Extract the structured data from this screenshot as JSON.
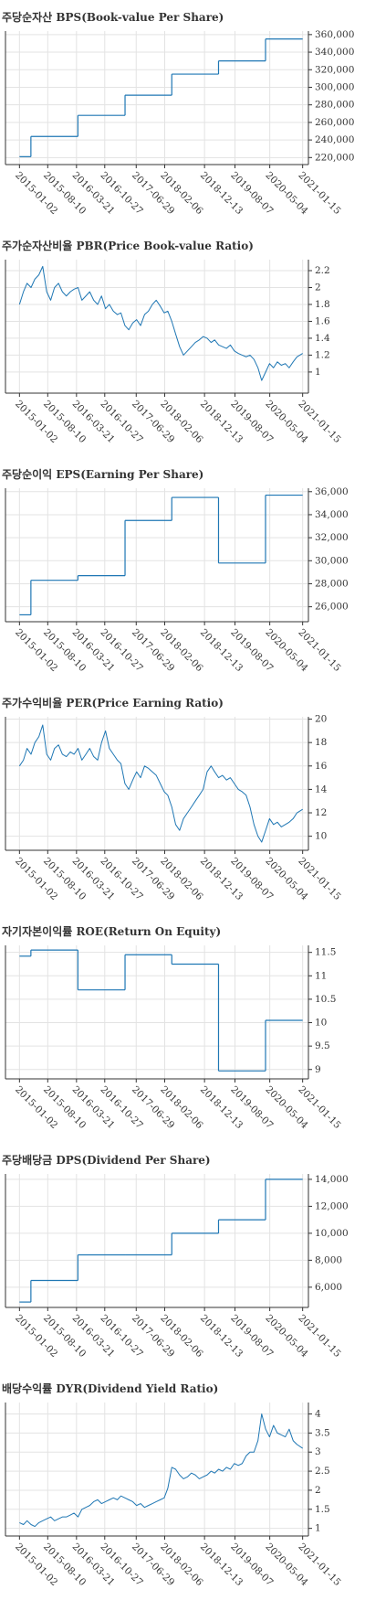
{
  "chart_data": [
    {
      "type": "line",
      "step": "post",
      "title": "주당순자산 BPS(Book-value Per Share)",
      "color": "#1f77b4",
      "grid": true,
      "x": [
        "2015-01-02",
        "2015-04-01",
        "2016-04-01",
        "2017-04-03",
        "2018-04-02",
        "2019-04-01",
        "2020-04-01",
        "2021-01-15"
      ],
      "values": [
        221000,
        244000,
        268000,
        291000,
        315000,
        330000,
        355000,
        355000
      ],
      "xlim": [
        "2014-09-15",
        "2021-03-01"
      ],
      "xticks": [
        "2015-01-02",
        "2015-08-10",
        "2016-03-21",
        "2016-10-27",
        "2017-06-29",
        "2018-02-06",
        "2018-12-13",
        "2019-08-07",
        "2020-05-04",
        "2021-01-15"
      ],
      "ylim": [
        212000,
        364000
      ],
      "yticks": [
        {
          "value": 220000,
          "label": "220,000"
        },
        {
          "value": 240000,
          "label": "240,000"
        },
        {
          "value": 260000,
          "label": "260,000"
        },
        {
          "value": 280000,
          "label": "280,000"
        },
        {
          "value": 300000,
          "label": "300,000"
        },
        {
          "value": 320000,
          "label": "320,000"
        },
        {
          "value": 340000,
          "label": "340,000"
        },
        {
          "value": 360000,
          "label": "360,000"
        }
      ]
    },
    {
      "type": "line",
      "title": "주가순자산비율 PBR(Price Book-value Ratio)",
      "color": "#1f77b4",
      "grid": true,
      "x": [
        "2015-01-02",
        "2015-02-02",
        "2015-03-02",
        "2015-04-02",
        "2015-05-02",
        "2015-06-02",
        "2015-07-02",
        "2015-08-02",
        "2015-09-02",
        "2015-10-02",
        "2015-11-02",
        "2015-12-02",
        "2016-01-02",
        "2016-02-02",
        "2016-03-02",
        "2016-04-02",
        "2016-05-02",
        "2016-06-02",
        "2016-07-02",
        "2016-08-02",
        "2016-09-02",
        "2016-10-02",
        "2016-11-02",
        "2016-12-02",
        "2017-01-02",
        "2017-02-02",
        "2017-03-02",
        "2017-04-02",
        "2017-05-02",
        "2017-06-02",
        "2017-07-02",
        "2017-08-02",
        "2017-09-02",
        "2017-10-02",
        "2017-11-02",
        "2017-12-02",
        "2018-01-02",
        "2018-02-02",
        "2018-03-02",
        "2018-04-02",
        "2018-05-02",
        "2018-06-02",
        "2018-07-02",
        "2018-08-02",
        "2018-09-02",
        "2018-10-02",
        "2018-11-02",
        "2018-12-02",
        "2019-01-02",
        "2019-02-02",
        "2019-03-02",
        "2019-04-02",
        "2019-05-02",
        "2019-06-02",
        "2019-07-02",
        "2019-08-02",
        "2019-09-02",
        "2019-10-02",
        "2019-11-02",
        "2019-12-02",
        "2020-01-02",
        "2020-02-02",
        "2020-03-02",
        "2020-04-02",
        "2020-05-02",
        "2020-06-02",
        "2020-07-02",
        "2020-08-02",
        "2020-09-02",
        "2020-10-02",
        "2020-11-02",
        "2020-12-02",
        "2021-01-15"
      ],
      "values": [
        1.8,
        1.95,
        2.05,
        2.0,
        2.1,
        2.15,
        2.25,
        1.95,
        1.85,
        2.0,
        2.05,
        1.95,
        1.9,
        1.95,
        1.98,
        2.0,
        1.85,
        1.9,
        1.95,
        1.85,
        1.8,
        1.9,
        1.75,
        1.8,
        1.72,
        1.68,
        1.7,
        1.55,
        1.5,
        1.58,
        1.62,
        1.55,
        1.68,
        1.72,
        1.8,
        1.85,
        1.78,
        1.7,
        1.72,
        1.6,
        1.45,
        1.3,
        1.2,
        1.25,
        1.3,
        1.35,
        1.38,
        1.42,
        1.4,
        1.35,
        1.38,
        1.32,
        1.3,
        1.28,
        1.32,
        1.25,
        1.22,
        1.2,
        1.18,
        1.2,
        1.15,
        1.05,
        0.9,
        1.0,
        1.1,
        1.05,
        1.12,
        1.08,
        1.1,
        1.05,
        1.12,
        1.18,
        1.22
      ],
      "xlim": [
        "2014-09-15",
        "2021-03-01"
      ],
      "xticks": [
        "2015-01-02",
        "2015-08-10",
        "2016-03-21",
        "2016-10-27",
        "2017-06-29",
        "2018-02-06",
        "2018-12-13",
        "2019-08-07",
        "2020-05-04",
        "2021-01-15"
      ],
      "ylim": [
        0.75,
        2.33
      ],
      "yticks": [
        1,
        1.2,
        1.4,
        1.6,
        1.8,
        2,
        2.2
      ]
    },
    {
      "type": "line",
      "step": "post",
      "title": "주당순이익 EPS(Earning Per Share)",
      "color": "#1f77b4",
      "grid": true,
      "x": [
        "2015-01-02",
        "2015-04-01",
        "2016-04-01",
        "2017-04-03",
        "2018-04-02",
        "2019-04-01",
        "2020-04-01",
        "2021-01-15"
      ],
      "values": [
        25300,
        28300,
        28700,
        33500,
        35500,
        29800,
        35700,
        35700
      ],
      "xlim": [
        "2014-09-15",
        "2021-03-01"
      ],
      "xticks": [
        "2015-01-02",
        "2015-08-10",
        "2016-03-21",
        "2016-10-27",
        "2017-06-29",
        "2018-02-06",
        "2018-12-13",
        "2019-08-07",
        "2020-05-04",
        "2021-01-15"
      ],
      "ylim": [
        24700,
        36300
      ],
      "yticks": [
        {
          "value": 26000,
          "label": "26,000"
        },
        {
          "value": 28000,
          "label": "28,000"
        },
        {
          "value": 30000,
          "label": "30,000"
        },
        {
          "value": 32000,
          "label": "32,000"
        },
        {
          "value": 34000,
          "label": "34,000"
        },
        {
          "value": 36000,
          "label": "36,000"
        }
      ]
    },
    {
      "type": "line",
      "title": "주가수익비율 PER(Price Earning Ratio)",
      "color": "#1f77b4",
      "grid": true,
      "x": [
        "2015-01-02",
        "2015-02-02",
        "2015-03-02",
        "2015-04-02",
        "2015-05-02",
        "2015-06-02",
        "2015-07-02",
        "2015-08-02",
        "2015-09-02",
        "2015-10-02",
        "2015-11-02",
        "2015-12-02",
        "2016-01-02",
        "2016-02-02",
        "2016-03-02",
        "2016-04-02",
        "2016-05-02",
        "2016-06-02",
        "2016-07-02",
        "2016-08-02",
        "2016-09-02",
        "2016-10-02",
        "2016-11-02",
        "2016-12-02",
        "2017-01-02",
        "2017-02-02",
        "2017-03-02",
        "2017-04-02",
        "2017-05-02",
        "2017-06-02",
        "2017-07-02",
        "2017-08-02",
        "2017-09-02",
        "2017-10-02",
        "2017-11-02",
        "2017-12-02",
        "2018-01-02",
        "2018-02-02",
        "2018-03-02",
        "2018-04-02",
        "2018-05-02",
        "2018-06-02",
        "2018-07-02",
        "2018-08-02",
        "2018-09-02",
        "2018-10-02",
        "2018-11-02",
        "2018-12-02",
        "2019-01-02",
        "2019-02-02",
        "2019-03-02",
        "2019-04-02",
        "2019-05-02",
        "2019-06-02",
        "2019-07-02",
        "2019-08-02",
        "2019-09-02",
        "2019-10-02",
        "2019-11-02",
        "2019-12-02",
        "2020-01-02",
        "2020-02-02",
        "2020-03-02",
        "2020-04-02",
        "2020-05-02",
        "2020-06-02",
        "2020-07-02",
        "2020-08-02",
        "2020-09-02",
        "2020-10-02",
        "2020-11-02",
        "2020-12-02",
        "2021-01-15"
      ],
      "values": [
        16.0,
        16.5,
        17.5,
        17.0,
        18.0,
        18.5,
        19.5,
        17.0,
        16.5,
        17.5,
        17.8,
        17.0,
        16.8,
        17.2,
        17.0,
        17.5,
        16.5,
        17.0,
        17.5,
        16.8,
        16.5,
        18.0,
        19.0,
        17.5,
        17.0,
        16.5,
        16.2,
        14.5,
        14.0,
        14.8,
        15.5,
        15.0,
        16.0,
        15.8,
        15.5,
        15.2,
        14.5,
        13.8,
        13.5,
        12.5,
        11.0,
        10.5,
        11.5,
        12.0,
        12.5,
        13.0,
        13.5,
        14.0,
        15.5,
        16.0,
        15.5,
        15.0,
        15.2,
        14.8,
        15.0,
        14.5,
        14.0,
        13.8,
        13.5,
        12.5,
        11.0,
        10.0,
        9.5,
        10.5,
        11.5,
        11.0,
        11.2,
        10.8,
        11.0,
        11.2,
        11.5,
        12.0,
        12.3
      ],
      "xlim": [
        "2014-09-15",
        "2021-03-01"
      ],
      "xticks": [
        "2015-01-02",
        "2015-08-10",
        "2016-03-21",
        "2016-10-27",
        "2017-06-29",
        "2018-02-06",
        "2018-12-13",
        "2019-08-07",
        "2020-05-04",
        "2021-01-15"
      ],
      "ylim": [
        8.8,
        20.2
      ],
      "yticks": [
        10,
        12,
        14,
        16,
        18,
        20
      ]
    },
    {
      "type": "line",
      "step": "post",
      "title": "자기자본이익률 ROE(Return On Equity)",
      "color": "#1f77b4",
      "grid": true,
      "x": [
        "2015-01-02",
        "2015-04-01",
        "2016-04-01",
        "2017-04-03",
        "2018-04-02",
        "2019-04-01",
        "2020-04-01",
        "2021-01-15"
      ],
      "values": [
        11.42,
        11.55,
        10.7,
        11.45,
        11.25,
        8.97,
        10.05,
        10.05
      ],
      "xlim": [
        "2014-09-15",
        "2021-03-01"
      ],
      "xticks": [
        "2015-01-02",
        "2015-08-10",
        "2016-03-21",
        "2016-10-27",
        "2017-06-29",
        "2018-02-06",
        "2018-12-13",
        "2019-08-07",
        "2020-05-04",
        "2021-01-15"
      ],
      "ylim": [
        8.8,
        11.65
      ],
      "yticks": [
        9,
        9.5,
        10,
        10.5,
        11,
        11.5
      ]
    },
    {
      "type": "line",
      "step": "post",
      "title": "주당배당금 DPS(Dividend Per Share)",
      "color": "#1f77b4",
      "grid": true,
      "x": [
        "2015-01-02",
        "2015-04-01",
        "2016-04-01",
        "2017-04-03",
        "2018-04-02",
        "2019-04-01",
        "2020-04-01",
        "2021-01-15"
      ],
      "values": [
        4900,
        6500,
        8400,
        8400,
        10000,
        11000,
        14000,
        14000
      ],
      "xlim": [
        "2014-09-15",
        "2021-03-01"
      ],
      "xticks": [
        "2015-01-02",
        "2015-08-10",
        "2016-03-21",
        "2016-10-27",
        "2017-06-29",
        "2018-02-06",
        "2018-12-13",
        "2019-08-07",
        "2020-05-04",
        "2021-01-15"
      ],
      "ylim": [
        4500,
        14400
      ],
      "yticks": [
        {
          "value": 6000,
          "label": "6,000"
        },
        {
          "value": 8000,
          "label": "8,000"
        },
        {
          "value": 10000,
          "label": "10,000"
        },
        {
          "value": 12000,
          "label": "12,000"
        },
        {
          "value": 14000,
          "label": "14,000"
        }
      ]
    },
    {
      "type": "line",
      "title": "배당수익률 DYR(Dividend Yield Ratio)",
      "color": "#1f77b4",
      "grid": true,
      "x": [
        "2015-01-02",
        "2015-02-02",
        "2015-03-02",
        "2015-04-02",
        "2015-05-02",
        "2015-06-02",
        "2015-07-02",
        "2015-08-02",
        "2015-09-02",
        "2015-10-02",
        "2015-11-02",
        "2015-12-02",
        "2016-01-02",
        "2016-02-02",
        "2016-03-02",
        "2016-04-02",
        "2016-05-02",
        "2016-06-02",
        "2016-07-02",
        "2016-08-02",
        "2016-09-02",
        "2016-10-02",
        "2016-11-02",
        "2016-12-02",
        "2017-01-02",
        "2017-02-02",
        "2017-03-02",
        "2017-04-02",
        "2017-05-02",
        "2017-06-02",
        "2017-07-02",
        "2017-08-02",
        "2017-09-02",
        "2017-10-02",
        "2017-11-02",
        "2017-12-02",
        "2018-01-02",
        "2018-02-02",
        "2018-03-02",
        "2018-04-02",
        "2018-05-02",
        "2018-06-02",
        "2018-07-02",
        "2018-08-02",
        "2018-09-02",
        "2018-10-02",
        "2018-11-02",
        "2018-12-02",
        "2019-01-02",
        "2019-02-02",
        "2019-03-02",
        "2019-04-02",
        "2019-05-02",
        "2019-06-02",
        "2019-07-02",
        "2019-08-02",
        "2019-09-02",
        "2019-10-02",
        "2019-11-02",
        "2019-12-02",
        "2020-01-02",
        "2020-02-02",
        "2020-03-02",
        "2020-04-02",
        "2020-05-02",
        "2020-06-02",
        "2020-07-02",
        "2020-08-02",
        "2020-09-02",
        "2020-10-02",
        "2020-11-02",
        "2020-12-02",
        "2021-01-15"
      ],
      "values": [
        1.15,
        1.1,
        1.2,
        1.1,
        1.05,
        1.15,
        1.2,
        1.25,
        1.3,
        1.2,
        1.25,
        1.3,
        1.3,
        1.35,
        1.4,
        1.3,
        1.5,
        1.55,
        1.6,
        1.7,
        1.75,
        1.65,
        1.7,
        1.75,
        1.8,
        1.75,
        1.85,
        1.8,
        1.75,
        1.7,
        1.6,
        1.65,
        1.55,
        1.6,
        1.65,
        1.7,
        1.75,
        1.8,
        2.05,
        2.6,
        2.55,
        2.4,
        2.3,
        2.35,
        2.45,
        2.4,
        2.3,
        2.35,
        2.4,
        2.5,
        2.45,
        2.55,
        2.5,
        2.6,
        2.55,
        2.7,
        2.65,
        2.7,
        2.9,
        3.0,
        3.0,
        3.3,
        4.0,
        3.6,
        3.4,
        3.7,
        3.5,
        3.45,
        3.4,
        3.6,
        3.3,
        3.2,
        3.1
      ],
      "xlim": [
        "2014-09-15",
        "2021-03-01"
      ],
      "xticks": [
        "2015-01-02",
        "2015-08-10",
        "2016-03-21",
        "2016-10-27",
        "2017-06-29",
        "2018-02-06",
        "2018-12-13",
        "2019-08-07",
        "2020-05-04",
        "2021-01-15"
      ],
      "ylim": [
        0.8,
        4.3
      ],
      "yticks": [
        1,
        1.5,
        2,
        2.5,
        3,
        3.5,
        4
      ]
    }
  ]
}
